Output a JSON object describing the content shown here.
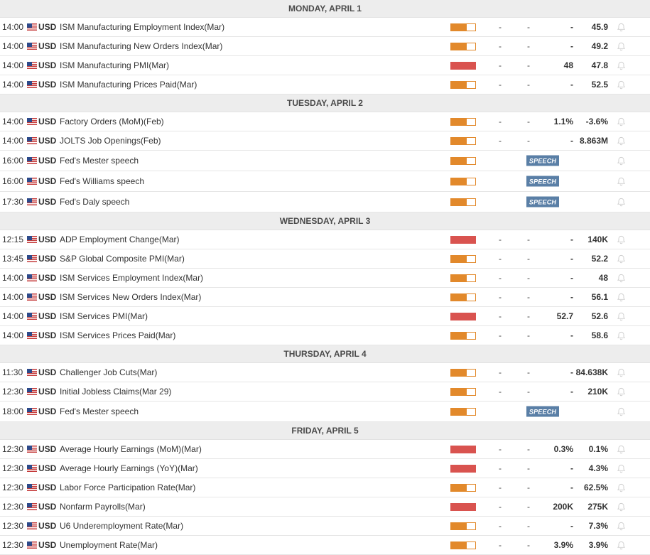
{
  "icons": {
    "flag": "us-flag-icon",
    "bell": "bell-icon"
  },
  "colors": {
    "medium_impact": "#e2892b",
    "high_impact": "#d9534f",
    "speech_badge": "#5a7fa6",
    "header_bg": "#ededed"
  },
  "days": [
    {
      "label": "MONDAY, APRIL 1",
      "events": [
        {
          "time": "14:00",
          "currency": "USD",
          "title": "ISM Manufacturing Employment Index(Mar)",
          "impact": "medium",
          "actual": "-",
          "consensus": "-",
          "previous": "-",
          "forecast": "45.9"
        },
        {
          "time": "14:00",
          "currency": "USD",
          "title": "ISM Manufacturing New Orders Index(Mar)",
          "impact": "medium",
          "actual": "-",
          "consensus": "-",
          "previous": "-",
          "forecast": "49.2"
        },
        {
          "time": "14:00",
          "currency": "USD",
          "title": "ISM Manufacturing PMI(Mar)",
          "impact": "high",
          "actual": "-",
          "consensus": "-",
          "previous": "48",
          "forecast": "47.8"
        },
        {
          "time": "14:00",
          "currency": "USD",
          "title": "ISM Manufacturing Prices Paid(Mar)",
          "impact": "medium",
          "actual": "-",
          "consensus": "-",
          "previous": "-",
          "forecast": "52.5"
        }
      ]
    },
    {
      "label": "TUESDAY, APRIL 2",
      "events": [
        {
          "time": "14:00",
          "currency": "USD",
          "title": "Factory Orders (MoM)(Feb)",
          "impact": "medium",
          "actual": "-",
          "consensus": "-",
          "previous": "1.1%",
          "forecast": "-3.6%"
        },
        {
          "time": "14:00",
          "currency": "USD",
          "title": "JOLTS Job Openings(Feb)",
          "impact": "medium",
          "actual": "-",
          "consensus": "-",
          "previous": "-",
          "forecast": "8.863M"
        },
        {
          "time": "16:00",
          "currency": "USD",
          "title": "Fed's Mester speech",
          "impact": "medium",
          "speech": "SPEECH"
        },
        {
          "time": "16:00",
          "currency": "USD",
          "title": "Fed's Williams speech",
          "impact": "medium",
          "speech": "SPEECH"
        },
        {
          "time": "17:30",
          "currency": "USD",
          "title": "Fed's Daly speech",
          "impact": "medium",
          "speech": "SPEECH"
        }
      ]
    },
    {
      "label": "WEDNESDAY, APRIL 3",
      "events": [
        {
          "time": "12:15",
          "currency": "USD",
          "title": "ADP Employment Change(Mar)",
          "impact": "high",
          "actual": "-",
          "consensus": "-",
          "previous": "-",
          "forecast": "140K"
        },
        {
          "time": "13:45",
          "currency": "USD",
          "title": "S&P Global Composite PMI(Mar)",
          "impact": "medium",
          "actual": "-",
          "consensus": "-",
          "previous": "-",
          "forecast": "52.2"
        },
        {
          "time": "14:00",
          "currency": "USD",
          "title": "ISM Services Employment Index(Mar)",
          "impact": "medium",
          "actual": "-",
          "consensus": "-",
          "previous": "-",
          "forecast": "48"
        },
        {
          "time": "14:00",
          "currency": "USD",
          "title": "ISM Services New Orders Index(Mar)",
          "impact": "medium",
          "actual": "-",
          "consensus": "-",
          "previous": "-",
          "forecast": "56.1"
        },
        {
          "time": "14:00",
          "currency": "USD",
          "title": "ISM Services PMI(Mar)",
          "impact": "high",
          "actual": "-",
          "consensus": "-",
          "previous": "52.7",
          "forecast": "52.6"
        },
        {
          "time": "14:00",
          "currency": "USD",
          "title": "ISM Services Prices Paid(Mar)",
          "impact": "medium",
          "actual": "-",
          "consensus": "-",
          "previous": "-",
          "forecast": "58.6"
        }
      ]
    },
    {
      "label": "THURSDAY, APRIL 4",
      "events": [
        {
          "time": "11:30",
          "currency": "USD",
          "title": "Challenger Job Cuts(Mar)",
          "impact": "medium",
          "actual": "-",
          "consensus": "-",
          "previous": "-",
          "forecast": "84.638K"
        },
        {
          "time": "12:30",
          "currency": "USD",
          "title": "Initial Jobless Claims(Mar 29)",
          "impact": "medium",
          "actual": "-",
          "consensus": "-",
          "previous": "-",
          "forecast": "210K"
        },
        {
          "time": "18:00",
          "currency": "USD",
          "title": "Fed's Mester speech",
          "impact": "medium",
          "speech": "SPEECH"
        }
      ]
    },
    {
      "label": "FRIDAY, APRIL 5",
      "events": [
        {
          "time": "12:30",
          "currency": "USD",
          "title": "Average Hourly Earnings (MoM)(Mar)",
          "impact": "high",
          "actual": "-",
          "consensus": "-",
          "previous": "0.3%",
          "forecast": "0.1%"
        },
        {
          "time": "12:30",
          "currency": "USD",
          "title": "Average Hourly Earnings (YoY)(Mar)",
          "impact": "high",
          "actual": "-",
          "consensus": "-",
          "previous": "-",
          "forecast": "4.3%"
        },
        {
          "time": "12:30",
          "currency": "USD",
          "title": "Labor Force Participation Rate(Mar)",
          "impact": "medium",
          "actual": "-",
          "consensus": "-",
          "previous": "-",
          "forecast": "62.5%"
        },
        {
          "time": "12:30",
          "currency": "USD",
          "title": "Nonfarm Payrolls(Mar)",
          "impact": "high",
          "actual": "-",
          "consensus": "-",
          "previous": "200K",
          "forecast": "275K"
        },
        {
          "time": "12:30",
          "currency": "USD",
          "title": "U6 Underemployment Rate(Mar)",
          "impact": "medium",
          "actual": "-",
          "consensus": "-",
          "previous": "-",
          "forecast": "7.3%"
        },
        {
          "time": "12:30",
          "currency": "USD",
          "title": "Unemployment Rate(Mar)",
          "impact": "medium",
          "actual": "-",
          "consensus": "-",
          "previous": "3.9%",
          "forecast": "3.9%"
        }
      ]
    }
  ]
}
